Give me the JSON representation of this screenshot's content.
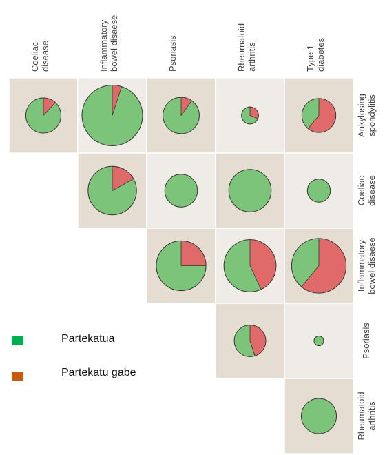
{
  "chart_data": {
    "type": "pie",
    "layout": "upper-triangular pairwise matrix of pie charts",
    "columns": [
      [
        "Coeliac",
        "disease"
      ],
      [
        "Inflammatory",
        "bowel disaese"
      ],
      [
        "Psoriasis"
      ],
      [
        "Rheumatoid",
        "arthritis"
      ],
      [
        "Type 1",
        "diabetes"
      ]
    ],
    "rows": [
      [
        "Ankylosing",
        "spondylitis"
      ],
      [
        "Coeliac",
        "disease"
      ],
      [
        "Inflammatory",
        "bowel disaese"
      ],
      [
        "Psoriasis"
      ],
      [
        "Rheumatoid",
        "arthritis"
      ]
    ],
    "legend": {
      "position": "left",
      "items": [
        {
          "label": "Partekatua",
          "color": "#00b050"
        },
        {
          "label": "Partekatu gabe",
          "color": "#c55a11"
        }
      ]
    },
    "pie_colors": {
      "shared": "#7cc47a",
      "not_shared": "#e06a6a"
    },
    "cell_colors": {
      "tan": "#e6ddd2",
      "light": "#efebe7"
    },
    "cells": [
      {
        "row": 0,
        "col": 0,
        "size": 0.58,
        "not_shared": 0.12
      },
      {
        "row": 0,
        "col": 1,
        "size": 1.0,
        "not_shared": 0.05
      },
      {
        "row": 0,
        "col": 2,
        "size": 0.6,
        "not_shared": 0.1
      },
      {
        "row": 0,
        "col": 3,
        "size": 0.28,
        "not_shared": 0.31
      },
      {
        "row": 0,
        "col": 4,
        "size": 0.56,
        "not_shared": 0.61
      },
      {
        "row": 1,
        "col": 1,
        "size": 0.8,
        "not_shared": 0.17
      },
      {
        "row": 1,
        "col": 2,
        "size": 0.54,
        "not_shared": 0.0
      },
      {
        "row": 1,
        "col": 3,
        "size": 0.7,
        "not_shared": 0.0
      },
      {
        "row": 1,
        "col": 4,
        "size": 0.38,
        "not_shared": 0.0
      },
      {
        "row": 2,
        "col": 2,
        "size": 0.82,
        "not_shared": 0.25
      },
      {
        "row": 2,
        "col": 3,
        "size": 0.86,
        "not_shared": 0.43
      },
      {
        "row": 2,
        "col": 4,
        "size": 0.9,
        "not_shared": 0.61
      },
      {
        "row": 3,
        "col": 3,
        "size": 0.52,
        "not_shared": 0.45
      },
      {
        "row": 3,
        "col": 4,
        "size": 0.16,
        "not_shared": 0.0
      },
      {
        "row": 4,
        "col": 4,
        "size": 0.58,
        "not_shared": 0.0
      }
    ]
  }
}
